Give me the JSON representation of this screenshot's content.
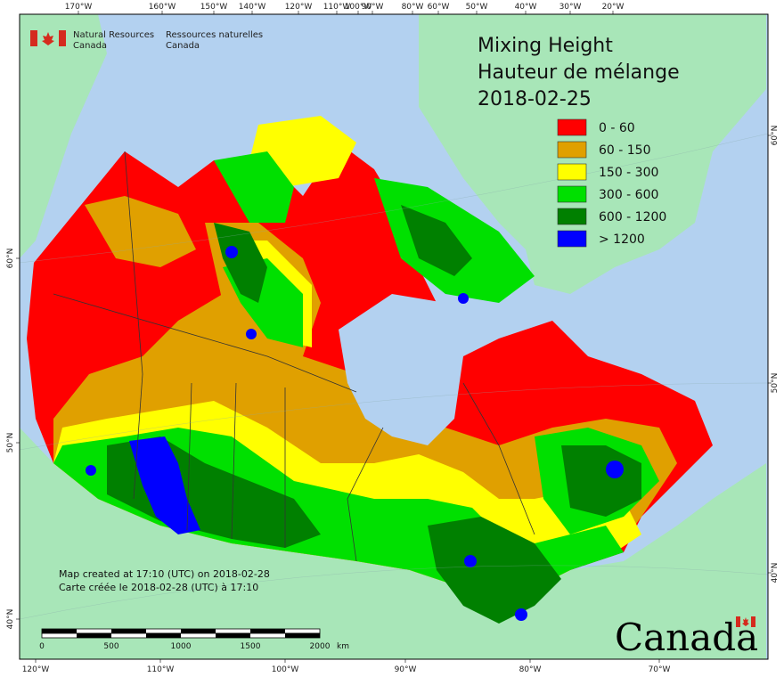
{
  "map": {
    "title_en": "Mixing Height",
    "title_fr": "Hauteur de mélange",
    "date": "2018-02-25",
    "agency_en_line1": "Natural Resources",
    "agency_en_line2": "Canada",
    "agency_fr_line1": "Ressources naturelles",
    "agency_fr_line2": "Canada",
    "created_en": "Map created at 17:10 (UTC) on 2018-02-28",
    "created_fr": "Carte créée le 2018-02-28 (UTC) à 17:10",
    "wordmark": "Canada",
    "scale": {
      "labels": [
        "0",
        "500",
        "1000",
        "1500",
        "2000"
      ],
      "unit": "km"
    },
    "top_ticks": [
      "170°W",
      "160°W",
      "150°W",
      "140°W",
      "120°W",
      "110°W",
      "100°W",
      "90°W",
      "80°W",
      "60°W",
      "50°W",
      "40°W",
      "30°W",
      "20°W"
    ],
    "bottom_ticks": [
      "120°W",
      "110°W",
      "100°W",
      "90°W",
      "80°W",
      "70°W"
    ],
    "left_ticks": [
      "60°N",
      "50°N",
      "40°N"
    ],
    "right_ticks": [
      "60°N",
      "50°N",
      "40°N"
    ],
    "legend": [
      {
        "label": "0 - 60",
        "color": "#ff0000"
      },
      {
        "label": "60 - 150",
        "color": "#e0a000"
      },
      {
        "label": "150 - 300",
        "color": "#ffff00"
      },
      {
        "label": "300 - 600",
        "color": "#00e000"
      },
      {
        "label": "600 - 1200",
        "color": "#008000"
      },
      {
        "label": "> 1200",
        "color": "#0000ff"
      }
    ],
    "colors": {
      "ocean": "#b3d1f0",
      "foreign_land": "#a8e6b8",
      "frame": "#000000"
    }
  }
}
